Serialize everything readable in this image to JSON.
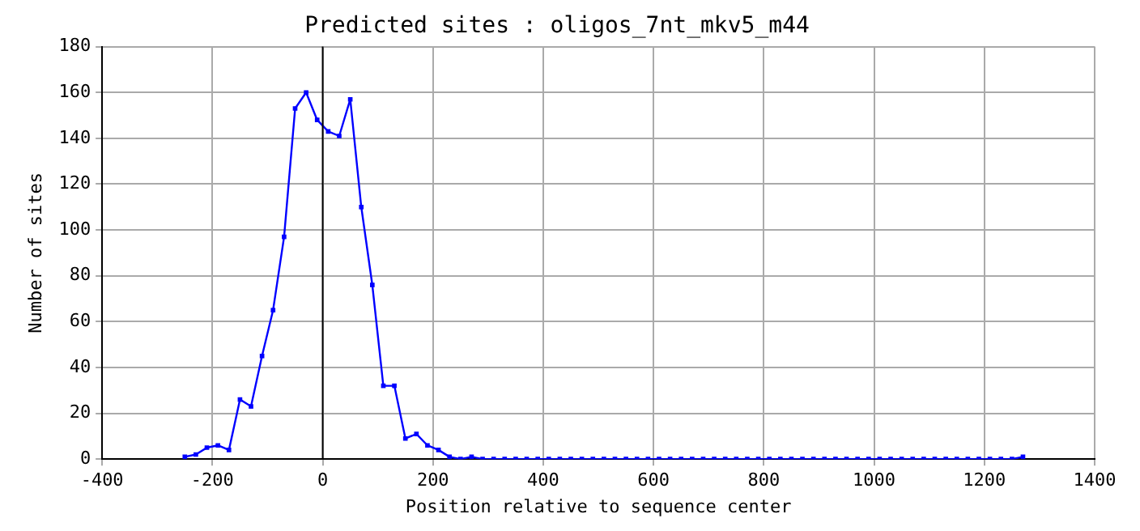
{
  "chart_data": {
    "type": "line",
    "title": "Predicted sites : oligos_7nt_mkv5_m44",
    "xlabel": "Position relative to sequence center",
    "ylabel": "Number of sites",
    "x": [
      -250,
      -230,
      -210,
      -190,
      -170,
      -150,
      -130,
      -110,
      -90,
      -70,
      -50,
      -30,
      -10,
      10,
      30,
      50,
      70,
      90,
      110,
      130,
      150,
      170,
      190,
      210,
      230,
      250,
      270,
      290,
      310,
      330,
      350,
      370,
      390,
      410,
      430,
      450,
      470,
      490,
      510,
      530,
      550,
      570,
      590,
      610,
      630,
      650,
      670,
      690,
      710,
      730,
      750,
      770,
      790,
      810,
      830,
      850,
      870,
      890,
      910,
      930,
      950,
      970,
      990,
      1010,
      1030,
      1050,
      1070,
      1090,
      1110,
      1130,
      1150,
      1170,
      1190,
      1210,
      1230,
      1250,
      1270
    ],
    "series": [
      {
        "color": "#0000ff",
        "values": [
          1,
          2,
          5,
          6,
          4,
          26,
          23,
          45,
          65,
          97,
          153,
          160,
          148,
          143,
          141,
          157,
          110,
          76,
          32,
          32,
          9,
          11,
          6,
          4,
          1,
          0,
          1,
          0,
          0,
          0,
          0,
          0,
          0,
          0,
          0,
          0,
          0,
          0,
          0,
          0,
          0,
          0,
          0,
          0,
          0,
          0,
          0,
          0,
          0,
          0,
          0,
          0,
          0,
          0,
          0,
          0,
          0,
          0,
          0,
          0,
          0,
          0,
          0,
          0,
          0,
          0,
          0,
          0,
          0,
          0,
          0,
          0,
          0,
          0,
          0,
          0,
          1
        ]
      }
    ],
    "xlim": [
      -400,
      1400
    ],
    "xticks": [
      -400,
      -200,
      0,
      200,
      400,
      600,
      800,
      1000,
      1200,
      1400
    ],
    "ylim": [
      0,
      180
    ],
    "yticks": [
      0,
      20,
      40,
      60,
      80,
      100,
      120,
      140,
      160,
      180
    ],
    "grid": true,
    "marker": "square",
    "line_style": "solid",
    "ref_lines": [
      {
        "axis": "x",
        "value": 0,
        "color": "#000000"
      }
    ]
  }
}
